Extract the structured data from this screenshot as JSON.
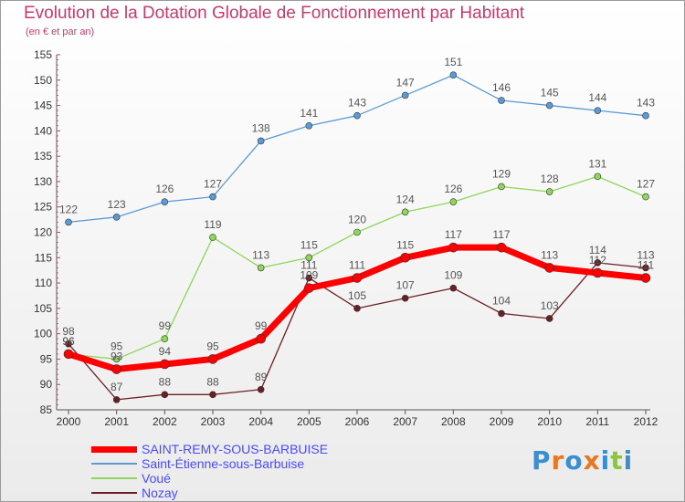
{
  "title": "Evolution de la Dotation Globale de Fonctionnement par Habitant",
  "subtitle": "(en € et par an)",
  "logo_text": [
    "P",
    "r",
    "o",
    "x",
    "i",
    "t",
    "i"
  ],
  "logo_colors": [
    "#3a8fd0",
    "#e87722",
    "#3a8fd0",
    "#e87722",
    "#3a8fd0",
    "#8cc63f",
    "#3a8fd0"
  ],
  "chart_data": {
    "type": "line",
    "title": "Evolution de la Dotation Globale de Fonctionnement par Habitant",
    "subtitle": "(en € et par an)",
    "x": [
      "2000",
      "2001",
      "2002",
      "2003",
      "2004",
      "2005",
      "2006",
      "2007",
      "2008",
      "2009",
      "2010",
      "2011",
      "2012"
    ],
    "ylim": [
      85,
      155
    ],
    "yticks": [
      85,
      90,
      95,
      100,
      105,
      110,
      115,
      120,
      125,
      130,
      135,
      140,
      145,
      150,
      155
    ],
    "grid": false,
    "legend_position": "bottom-left",
    "series": [
      {
        "name": "Nozay",
        "color": "#6b1f24",
        "width": 1.3,
        "values": [
          98,
          87,
          88,
          88,
          89,
          111,
          105,
          107,
          109,
          104,
          103,
          114,
          113
        ]
      },
      {
        "name": "Voué",
        "color": "#8fd65a",
        "width": 1.3,
        "values": [
          96,
          95,
          99,
          119,
          113,
          115,
          120,
          124,
          126,
          129,
          128,
          131,
          127
        ]
      },
      {
        "name": "Saint-Étienne-sous-Barbuise",
        "color": "#5b9bd5",
        "width": 1.3,
        "values": [
          122,
          123,
          126,
          127,
          138,
          141,
          143,
          147,
          151,
          146,
          145,
          144,
          143
        ]
      },
      {
        "name": "SAINT-REMY-SOUS-BARBUISE",
        "color": "#ff0000",
        "width": 7,
        "values": [
          96,
          93,
          94,
          95,
          99,
          109,
          111,
          115,
          117,
          117,
          113,
          112,
          111
        ]
      }
    ],
    "legend": [
      {
        "name": "SAINT-REMY-SOUS-BARBUISE",
        "color": "#ff0000"
      },
      {
        "name": "Saint-Étienne-sous-Barbuise",
        "color": "#5b9bd5"
      },
      {
        "name": "Voué",
        "color": "#8fd65a"
      },
      {
        "name": "Nozay",
        "color": "#6b1f24"
      }
    ]
  }
}
